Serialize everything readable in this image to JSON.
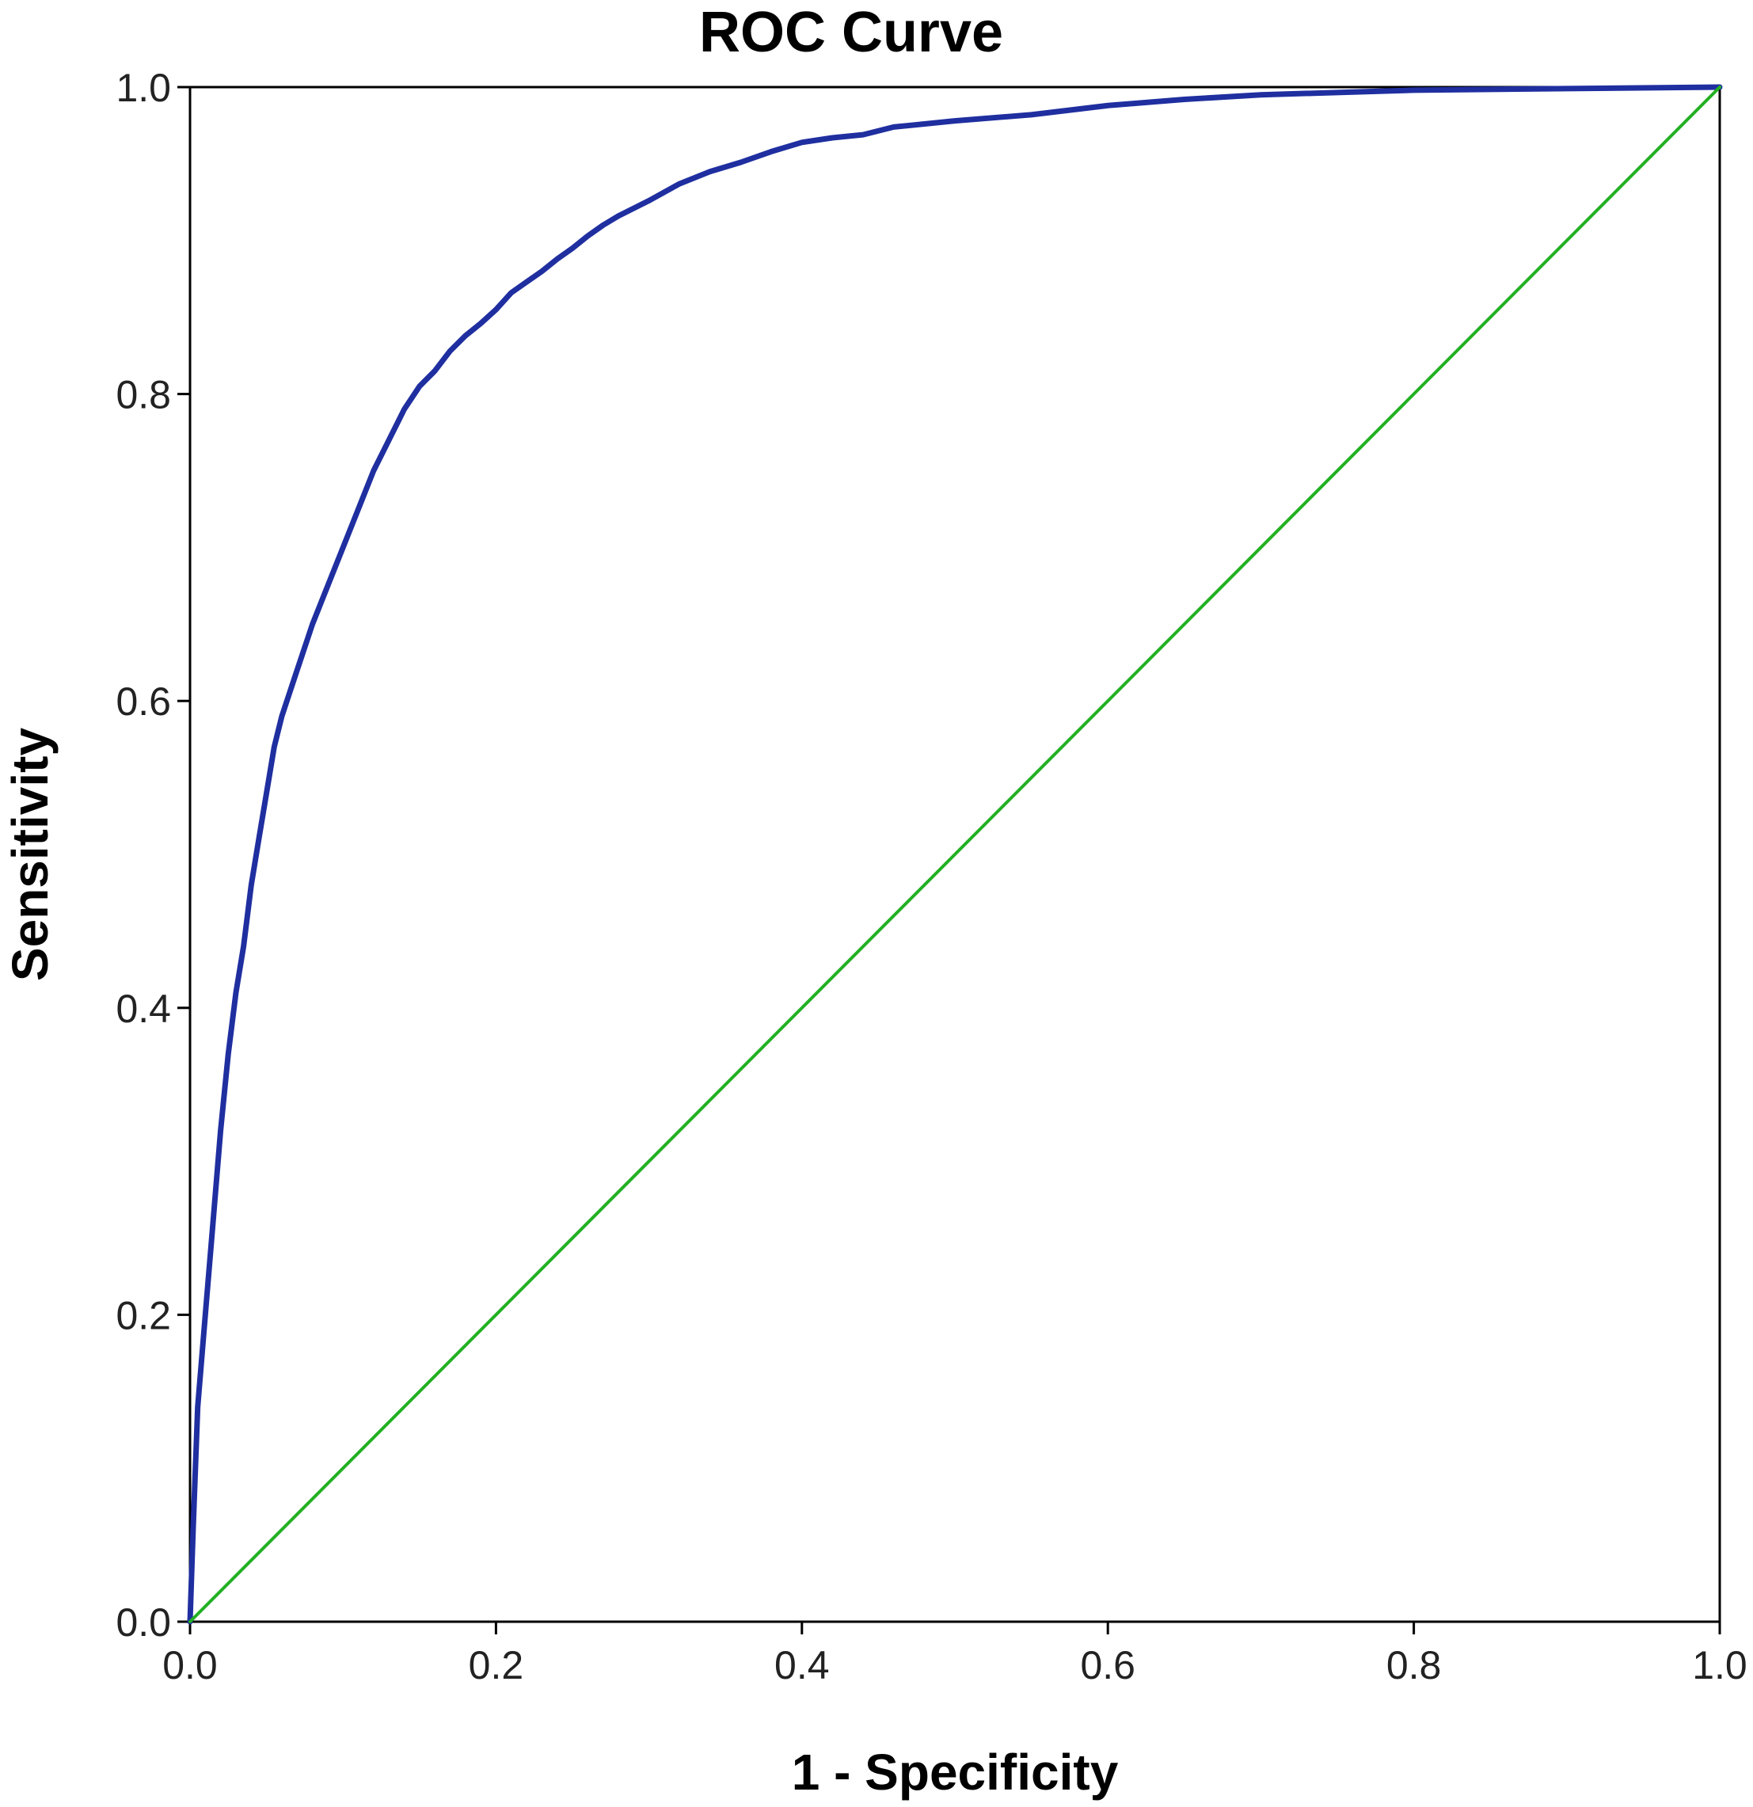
{
  "chart_data": {
    "type": "line",
    "title": "ROC Curve",
    "xlabel": "1 - Specificity",
    "ylabel": "Sensitivity",
    "xlim": [
      0.0,
      1.0
    ],
    "ylim": [
      0.0,
      1.0
    ],
    "x_ticks": [
      "0.0",
      "0.2",
      "0.4",
      "0.6",
      "0.8",
      "1.0"
    ],
    "y_ticks": [
      "0.0",
      "0.2",
      "0.4",
      "0.6",
      "0.8",
      "1.0"
    ],
    "grid": false,
    "legend": "none",
    "series": [
      {
        "color": "#1f2fa0",
        "points": [
          [
            0.0,
            0.0
          ],
          [
            0.002,
            0.06
          ],
          [
            0.005,
            0.14
          ],
          [
            0.01,
            0.2
          ],
          [
            0.015,
            0.26
          ],
          [
            0.02,
            0.32
          ],
          [
            0.025,
            0.37
          ],
          [
            0.03,
            0.41
          ],
          [
            0.035,
            0.44
          ],
          [
            0.04,
            0.48
          ],
          [
            0.045,
            0.51
          ],
          [
            0.05,
            0.54
          ],
          [
            0.055,
            0.57
          ],
          [
            0.06,
            0.59
          ],
          [
            0.07,
            0.62
          ],
          [
            0.08,
            0.65
          ],
          [
            0.09,
            0.675
          ],
          [
            0.1,
            0.7
          ],
          [
            0.11,
            0.725
          ],
          [
            0.12,
            0.75
          ],
          [
            0.13,
            0.77
          ],
          [
            0.14,
            0.79
          ],
          [
            0.15,
            0.805
          ],
          [
            0.16,
            0.815
          ],
          [
            0.17,
            0.828
          ],
          [
            0.18,
            0.838
          ],
          [
            0.19,
            0.846
          ],
          [
            0.2,
            0.855
          ],
          [
            0.21,
            0.866
          ],
          [
            0.22,
            0.873
          ],
          [
            0.23,
            0.88
          ],
          [
            0.24,
            0.888
          ],
          [
            0.25,
            0.895
          ],
          [
            0.26,
            0.903
          ],
          [
            0.27,
            0.91
          ],
          [
            0.28,
            0.916
          ],
          [
            0.3,
            0.926
          ],
          [
            0.32,
            0.937
          ],
          [
            0.34,
            0.945
          ],
          [
            0.36,
            0.951
          ],
          [
            0.38,
            0.958
          ],
          [
            0.4,
            0.964
          ],
          [
            0.42,
            0.967
          ],
          [
            0.44,
            0.969
          ],
          [
            0.46,
            0.974
          ],
          [
            0.5,
            0.978
          ],
          [
            0.55,
            0.982
          ],
          [
            0.6,
            0.988
          ],
          [
            0.65,
            0.992
          ],
          [
            0.7,
            0.995
          ],
          [
            0.8,
            0.998
          ],
          [
            0.9,
            0.999
          ],
          [
            1.0,
            1.0
          ]
        ]
      },
      {
        "color": "#22b022",
        "points": [
          [
            0.0,
            0.0
          ],
          [
            1.0,
            1.0
          ]
        ]
      }
    ]
  }
}
